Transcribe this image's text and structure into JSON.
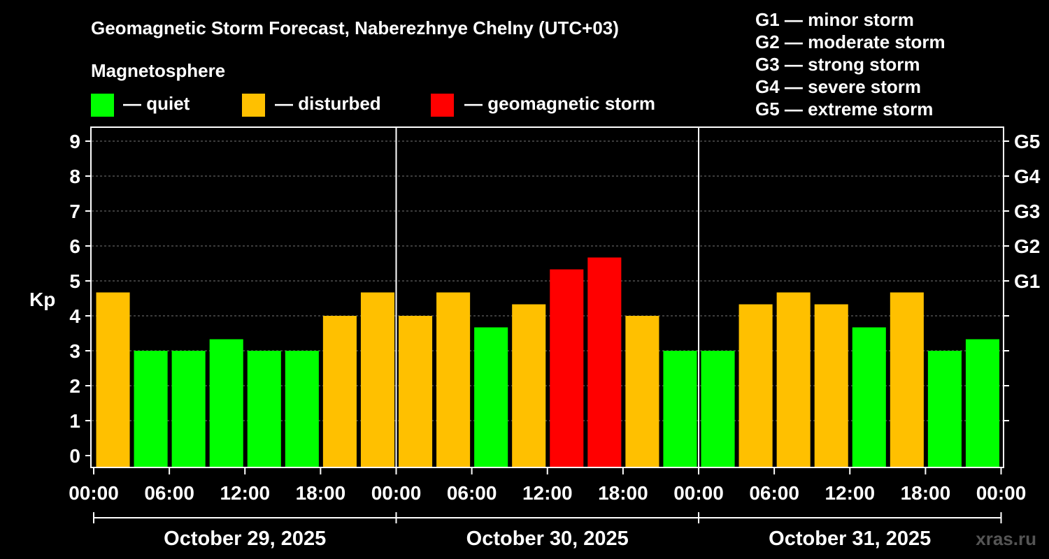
{
  "chart_data": {
    "type": "bar",
    "title": "Geomagnetic Storm Forecast, Naberezhnye Chelny (UTC+03)",
    "ylabel": "Kp",
    "ylim": [
      0,
      9
    ],
    "yticks": [
      "0",
      "1",
      "2",
      "3",
      "4",
      "5",
      "6",
      "7",
      "8",
      "9"
    ],
    "storm_levels": [
      {
        "kp": 5,
        "label": "G1"
      },
      {
        "kp": 6,
        "label": "G2"
      },
      {
        "kp": 7,
        "label": "G3"
      },
      {
        "kp": 8,
        "label": "G4"
      },
      {
        "kp": 9,
        "label": "G5"
      }
    ],
    "storm_legend": [
      "G1 — minor storm",
      "G2 — moderate storm",
      "G3 — strong storm",
      "G4 — severe storm",
      "G5 — extreme storm"
    ],
    "magnetosphere_title": "Magnetosphere",
    "status_legend": [
      {
        "key": "quiet",
        "label": "— quiet",
        "color": "#00ff00"
      },
      {
        "key": "disturbed",
        "label": "— disturbed",
        "color": "#ffc000"
      },
      {
        "key": "storm",
        "label": "— geomagnetic storm",
        "color": "#ff0000"
      }
    ],
    "x_tick_labels": [
      "00:00",
      "06:00",
      "12:00",
      "18:00",
      "00:00",
      "06:00",
      "12:00",
      "18:00",
      "00:00",
      "06:00",
      "12:00",
      "18:00",
      "00:00"
    ],
    "days": [
      "October 29, 2025",
      "October 30, 2025",
      "October 31, 2025"
    ],
    "values": [
      4.67,
      3.0,
      3.0,
      3.33,
      3.0,
      3.0,
      4.0,
      4.67,
      4.0,
      4.67,
      3.67,
      4.33,
      5.33,
      5.67,
      4.0,
      3.0,
      3.0,
      4.33,
      4.67,
      4.33,
      3.67,
      4.67,
      3.0,
      3.33
    ],
    "status": [
      "disturbed",
      "quiet",
      "quiet",
      "quiet",
      "quiet",
      "quiet",
      "disturbed",
      "disturbed",
      "disturbed",
      "disturbed",
      "quiet",
      "disturbed",
      "storm",
      "storm",
      "disturbed",
      "quiet",
      "quiet",
      "disturbed",
      "disturbed",
      "disturbed",
      "quiet",
      "disturbed",
      "quiet",
      "quiet"
    ],
    "watermark": "xras.ru"
  }
}
